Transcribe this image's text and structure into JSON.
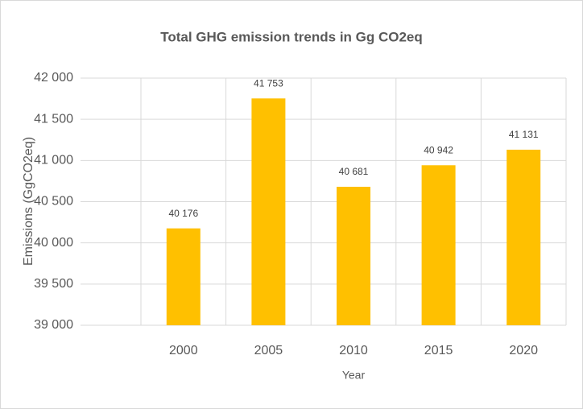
{
  "chart_data": {
    "type": "bar",
    "title": "Total GHG emission trends in Gg CO2eq",
    "xlabel": "Year",
    "ylabel": "Emissions (GgCO2eq)",
    "categories": [
      "2000",
      "2005",
      "2010",
      "2015",
      "2020"
    ],
    "values": [
      40176,
      41753,
      40681,
      40942,
      41131
    ],
    "value_labels": [
      "40 176",
      "41 753",
      "40 681",
      "40 942",
      "41 131"
    ],
    "color": "#ffc000",
    "ylim": [
      39000,
      42000
    ],
    "yticks": [
      {
        "value": 39000,
        "label": "39 000"
      },
      {
        "value": 39500,
        "label": "39 500"
      },
      {
        "value": 40000,
        "label": "40 000"
      },
      {
        "value": 40500,
        "label": "40 500"
      },
      {
        "value": 41000,
        "label": "41 000"
      },
      {
        "value": 41500,
        "label": "41 500"
      },
      {
        "value": 42000,
        "label": "42 000"
      }
    ],
    "grid": true
  }
}
